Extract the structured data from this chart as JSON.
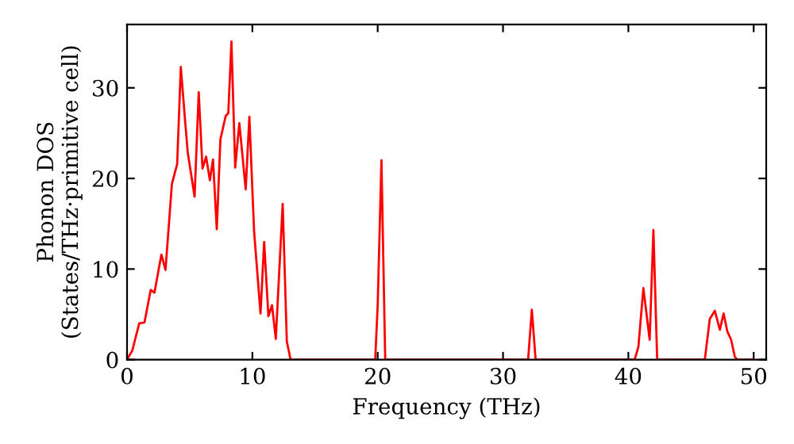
{
  "chart_data": {
    "type": "line",
    "xlabel": "Frequency (THz)",
    "ylabel": "Phonon DOS\n(States/THz·primitive cell)",
    "series": [
      {
        "color": "#ff0000",
        "x": [
          0,
          0.42,
          0.97,
          1.39,
          1.89,
          2.19,
          2.74,
          3.07,
          3.58,
          4.0,
          4.29,
          4.63,
          4.84,
          5.39,
          5.72,
          6.02,
          6.31,
          6.61,
          6.86,
          7.16,
          7.45,
          7.87,
          8.08,
          8.33,
          8.63,
          8.96,
          9.47,
          9.76,
          10.14,
          10.65,
          10.94,
          11.28,
          11.57,
          11.87,
          12.42,
          12.75,
          13.05,
          19.8,
          20.0,
          20.3,
          20.6,
          32.0,
          32.3,
          32.6,
          40.5,
          40.8,
          41.2,
          41.7,
          42.0,
          42.3,
          46.1,
          46.5,
          46.9,
          47.3,
          47.6,
          47.9,
          48.2,
          48.5,
          48.7,
          50
        ],
        "values": [
          0,
          1.0,
          4.0,
          4.1,
          7.7,
          7.4,
          11.6,
          9.9,
          19.4,
          21.6,
          32.3,
          26.4,
          22.9,
          18.0,
          29.5,
          21.1,
          22.4,
          19.8,
          22.1,
          14.4,
          24.3,
          26.9,
          27.2,
          35.1,
          21.2,
          26.1,
          18.8,
          26.8,
          14.1,
          5.1,
          13.0,
          4.8,
          6.0,
          2.3,
          17.2,
          2.0,
          0,
          0,
          6,
          22,
          0,
          0,
          5.5,
          0,
          0,
          1.4,
          7.9,
          2.2,
          14.3,
          0,
          0,
          4.5,
          5.4,
          3.3,
          5.1,
          3.1,
          2.2,
          0.3,
          0,
          0
        ]
      }
    ],
    "xlim": [
      0,
      51
    ],
    "ylim": [
      0,
      37
    ],
    "xticks": [
      0,
      10,
      20,
      30,
      40,
      50
    ],
    "yticks": [
      0,
      10,
      20,
      30
    ],
    "grid": false,
    "legend": false
  }
}
